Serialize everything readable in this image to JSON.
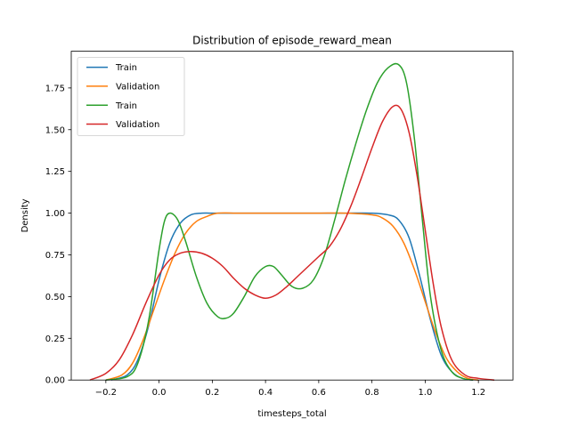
{
  "chart_data": {
    "type": "line",
    "title": "Distribution of episode_reward_mean",
    "xlabel": "timesteps_total",
    "ylabel": "Density",
    "xlim": [
      -0.33,
      1.33
    ],
    "ylim": [
      0,
      1.97
    ],
    "xticks": [
      -0.2,
      0.0,
      0.2,
      0.4,
      0.6,
      0.8,
      1.0,
      1.2
    ],
    "xtick_labels": [
      "−0.2",
      "0.0",
      "0.2",
      "0.4",
      "0.6",
      "0.8",
      "1.0",
      "1.2"
    ],
    "yticks": [
      0.0,
      0.25,
      0.5,
      0.75,
      1.0,
      1.25,
      1.5,
      1.75
    ],
    "ytick_labels": [
      "0.00",
      "0.25",
      "0.50",
      "0.75",
      "1.00",
      "1.25",
      "1.50",
      "1.75"
    ],
    "grid": false,
    "legend_position": "top-left",
    "series": [
      {
        "name": "Train",
        "color": "#1f77b4",
        "x": [
          -0.18,
          -0.12,
          -0.08,
          -0.04,
          0.0,
          0.04,
          0.08,
          0.12,
          0.16,
          0.2,
          0.3,
          0.4,
          0.5,
          0.6,
          0.7,
          0.8,
          0.86,
          0.9,
          0.94,
          0.98,
          1.02,
          1.06,
          1.1,
          1.14,
          1.18
        ],
        "y": [
          0.0,
          0.03,
          0.12,
          0.32,
          0.6,
          0.82,
          0.94,
          0.99,
          1.0,
          1.0,
          1.0,
          1.0,
          1.0,
          1.0,
          1.0,
          1.0,
          0.99,
          0.96,
          0.85,
          0.62,
          0.36,
          0.15,
          0.05,
          0.01,
          0.0
        ]
      },
      {
        "name": "Validation",
        "color": "#ff7f0e",
        "x": [
          -0.2,
          -0.14,
          -0.1,
          -0.06,
          -0.02,
          0.02,
          0.06,
          0.1,
          0.14,
          0.18,
          0.22,
          0.3,
          0.4,
          0.5,
          0.6,
          0.7,
          0.8,
          0.84,
          0.88,
          0.92,
          0.96,
          1.0,
          1.04,
          1.08,
          1.12,
          1.16,
          1.2
        ],
        "y": [
          0.0,
          0.03,
          0.1,
          0.24,
          0.42,
          0.6,
          0.76,
          0.88,
          0.95,
          0.98,
          1.0,
          1.0,
          1.0,
          1.0,
          1.0,
          1.0,
          0.99,
          0.97,
          0.92,
          0.82,
          0.66,
          0.47,
          0.28,
          0.13,
          0.05,
          0.01,
          0.0
        ]
      },
      {
        "name": "Train",
        "color": "#2ca02c",
        "x": [
          -0.2,
          -0.12,
          -0.08,
          -0.04,
          0.0,
          0.02,
          0.04,
          0.07,
          0.1,
          0.14,
          0.18,
          0.22,
          0.25,
          0.28,
          0.32,
          0.36,
          0.4,
          0.43,
          0.46,
          0.5,
          0.54,
          0.58,
          0.62,
          0.66,
          0.7,
          0.74,
          0.78,
          0.82,
          0.86,
          0.9,
          0.93,
          0.96,
          0.99,
          1.02,
          1.06,
          1.1,
          1.14,
          1.18
        ],
        "y": [
          0.0,
          0.02,
          0.1,
          0.35,
          0.78,
          0.95,
          1.0,
          0.96,
          0.83,
          0.62,
          0.46,
          0.38,
          0.37,
          0.4,
          0.5,
          0.62,
          0.68,
          0.68,
          0.63,
          0.56,
          0.55,
          0.6,
          0.74,
          0.96,
          1.2,
          1.42,
          1.62,
          1.78,
          1.87,
          1.89,
          1.78,
          1.44,
          0.95,
          0.5,
          0.18,
          0.05,
          0.01,
          0.0
        ]
      },
      {
        "name": "Validation",
        "color": "#d62728",
        "x": [
          -0.26,
          -0.2,
          -0.15,
          -0.1,
          -0.05,
          0.0,
          0.04,
          0.08,
          0.12,
          0.16,
          0.2,
          0.24,
          0.28,
          0.32,
          0.36,
          0.4,
          0.44,
          0.48,
          0.52,
          0.56,
          0.6,
          0.64,
          0.68,
          0.72,
          0.76,
          0.8,
          0.84,
          0.88,
          0.91,
          0.94,
          0.97,
          1.0,
          1.03,
          1.06,
          1.1,
          1.15,
          1.2,
          1.26
        ],
        "y": [
          0.0,
          0.04,
          0.12,
          0.27,
          0.46,
          0.63,
          0.72,
          0.76,
          0.77,
          0.76,
          0.73,
          0.68,
          0.61,
          0.55,
          0.51,
          0.49,
          0.51,
          0.56,
          0.62,
          0.68,
          0.74,
          0.8,
          0.9,
          1.04,
          1.21,
          1.39,
          1.55,
          1.64,
          1.62,
          1.48,
          1.22,
          0.9,
          0.58,
          0.32,
          0.12,
          0.03,
          0.01,
          0.0
        ]
      }
    ]
  }
}
